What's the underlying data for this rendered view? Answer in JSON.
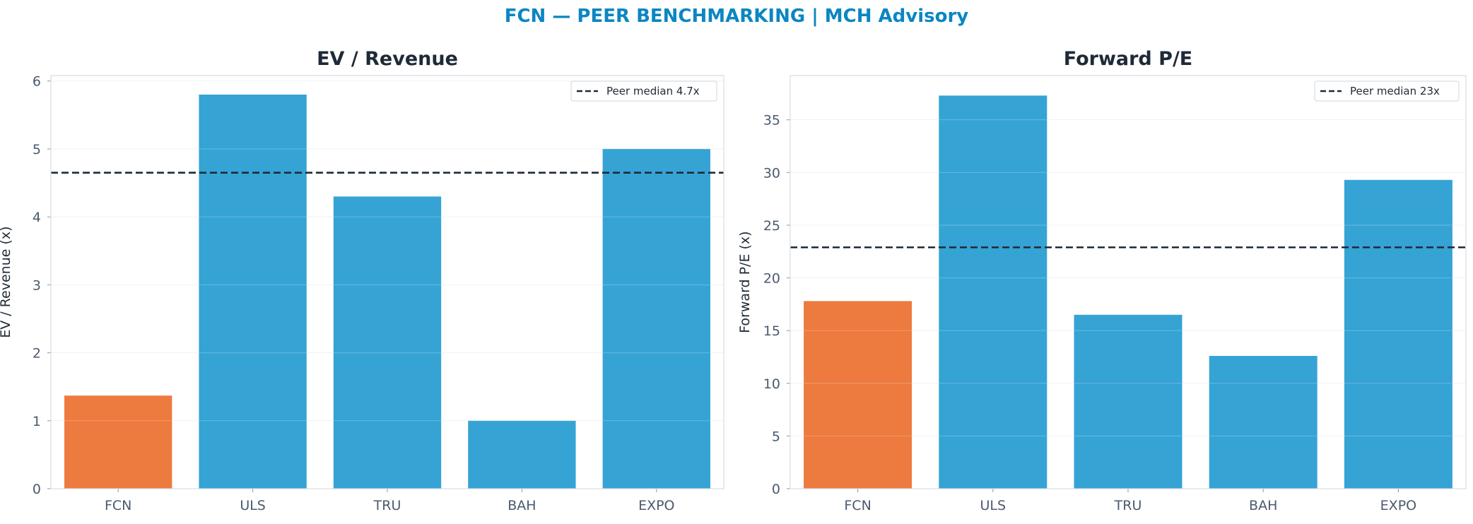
{
  "title": "FCN — PEER BENCHMARKING | MCH Advisory",
  "colors": {
    "title": "#0b86c2",
    "highlight": "#ed7a3e",
    "peer": "#35a3d4",
    "median_line": "#1f2a37",
    "grid": "#eef1f4",
    "frame": "#d7dce2"
  },
  "chart_data": [
    {
      "type": "bar",
      "title": "EV / Revenue",
      "xlabel": "",
      "ylabel": "EV / Revenue (x)",
      "categories": [
        "FCN",
        "ULS",
        "TRU",
        "BAH",
        "EXPO"
      ],
      "values": [
        1.37,
        5.8,
        4.3,
        1.0,
        5.0
      ],
      "highlight_category": "FCN",
      "ylim": [
        0,
        6.08
      ],
      "yticks": [
        0,
        1,
        2,
        3,
        4,
        5,
        6
      ],
      "reference_line": {
        "label": "Peer median 4.7x",
        "value": 4.65,
        "style": "dashed"
      },
      "legend_position": "top-right",
      "grid": true
    },
    {
      "type": "bar",
      "title": "Forward P/E",
      "xlabel": "",
      "ylabel": "Forward P/E (x)",
      "categories": [
        "FCN",
        "ULS",
        "TRU",
        "BAH",
        "EXPO"
      ],
      "values": [
        17.8,
        37.3,
        16.5,
        12.6,
        29.3
      ],
      "highlight_category": "FCN",
      "ylim": [
        0,
        39.2
      ],
      "yticks": [
        0,
        5,
        10,
        15,
        20,
        25,
        30,
        35
      ],
      "reference_line": {
        "label": "Peer median 23x",
        "value": 22.9,
        "style": "dashed"
      },
      "legend_position": "top-right",
      "grid": true
    }
  ]
}
